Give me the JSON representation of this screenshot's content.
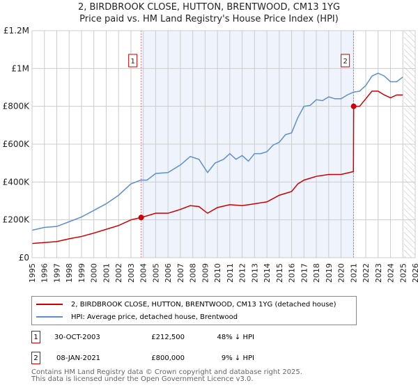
{
  "chart_data": {
    "type": "line",
    "title": "2, BIRDBROOK CLOSE, HUTTON, BRENTWOOD, CM13 1YG",
    "subtitle": "Price paid vs. HM Land Registry's House Price Index (HPI)",
    "xlim": [
      1995,
      2026
    ],
    "ylim": [
      0,
      1200000
    ],
    "x_ticks": [
      "1995",
      "1996",
      "1997",
      "1998",
      "1999",
      "2000",
      "2001",
      "2002",
      "2003",
      "2004",
      "2005",
      "2006",
      "2007",
      "2008",
      "2009",
      "2010",
      "2011",
      "2012",
      "2013",
      "2014",
      "2015",
      "2016",
      "2017",
      "2018",
      "2019",
      "2020",
      "2021",
      "2022",
      "2023",
      "2024",
      "2025",
      "2026"
    ],
    "y_ticks": [
      {
        "v": 0,
        "l": "£0"
      },
      {
        "v": 200000,
        "l": "£200K"
      },
      {
        "v": 400000,
        "l": "£400K"
      },
      {
        "v": 600000,
        "l": "£600K"
      },
      {
        "v": 800000,
        "l": "£800K"
      },
      {
        "v": 1000000,
        "l": "£1M"
      },
      {
        "v": 1200000,
        "l": "£1.2M"
      }
    ],
    "grid": true,
    "shaded_range": [
      2003.83,
      2021.02
    ],
    "hatched_from": 2025.1,
    "series": [
      {
        "name": "2, BIRDBROOK CLOSE, HUTTON, BRENTWOOD, CM13 1YG (detached house)",
        "color": "#cc0000",
        "x": [
          1995,
          1996,
          1997,
          1998,
          1999,
          2000,
          2001,
          2002,
          2003,
          2003.83,
          2004.5,
          2005,
          2006,
          2007,
          2007.8,
          2008.5,
          2009.2,
          2010,
          2011,
          2012,
          2013,
          2014,
          2015,
          2016,
          2016.5,
          2017,
          2018,
          2019,
          2020,
          2021,
          2021.02,
          2021.5,
          2022,
          2022.5,
          2023,
          2023.5,
          2024,
          2024.5,
          2025
        ],
        "y": [
          75000,
          80000,
          85000,
          100000,
          112000,
          130000,
          150000,
          170000,
          200000,
          212500,
          225000,
          235000,
          235000,
          255000,
          275000,
          270000,
          235000,
          265000,
          280000,
          275000,
          285000,
          295000,
          330000,
          350000,
          390000,
          410000,
          430000,
          440000,
          440000,
          455000,
          800000,
          800000,
          840000,
          880000,
          880000,
          860000,
          845000,
          860000,
          860000
        ]
      },
      {
        "name": "HPI: Average price, detached house, Brentwood",
        "color": "#5b8fd4",
        "x": [
          1995,
          1996,
          1997,
          1998,
          1999,
          2000,
          2001,
          2002,
          2003,
          2003.8,
          2004.3,
          2005,
          2006,
          2007,
          2007.8,
          2008.5,
          2009.2,
          2009.8,
          2010.5,
          2011,
          2011.5,
          2012,
          2012.5,
          2013,
          2013.5,
          2014,
          2014.5,
          2015,
          2015.5,
          2016,
          2016.5,
          2017,
          2017.5,
          2018,
          2018.5,
          2019,
          2019.5,
          2020,
          2020.5,
          2021,
          2021.5,
          2022,
          2022.5,
          2023,
          2023.5,
          2024,
          2024.5,
          2025
        ],
        "y": [
          145000,
          160000,
          165000,
          190000,
          215000,
          250000,
          285000,
          330000,
          390000,
          410000,
          410000,
          445000,
          450000,
          490000,
          535000,
          520000,
          450000,
          500000,
          520000,
          550000,
          520000,
          540000,
          510000,
          550000,
          550000,
          560000,
          595000,
          610000,
          650000,
          660000,
          740000,
          800000,
          805000,
          835000,
          830000,
          850000,
          840000,
          840000,
          860000,
          875000,
          880000,
          910000,
          960000,
          975000,
          960000,
          930000,
          930000,
          955000
        ]
      }
    ],
    "markers": [
      {
        "label": "1",
        "x": 2003.83,
        "y": 212500
      },
      {
        "label": "2",
        "x": 2021.02,
        "y": 800000
      }
    ]
  },
  "legend": [
    {
      "label": "2, BIRDBROOK CLOSE, HUTTON, BRENTWOOD, CM13 1YG (detached house)",
      "color": "#cc0000"
    },
    {
      "label": "HPI: Average price, detached house, Brentwood",
      "color": "#5b8fd4"
    }
  ],
  "transactions": [
    {
      "n": "1",
      "date": "30-OCT-2003",
      "price": "£212,500",
      "hpi": "48% ↓ HPI"
    },
    {
      "n": "2",
      "date": "08-JAN-2021",
      "price": "£800,000",
      "hpi": "9% ↓ HPI"
    }
  ],
  "footer": [
    "Contains HM Land Registry data © Crown copyright and database right 2025.",
    "This data is licensed under the Open Government Licence v3.0."
  ]
}
